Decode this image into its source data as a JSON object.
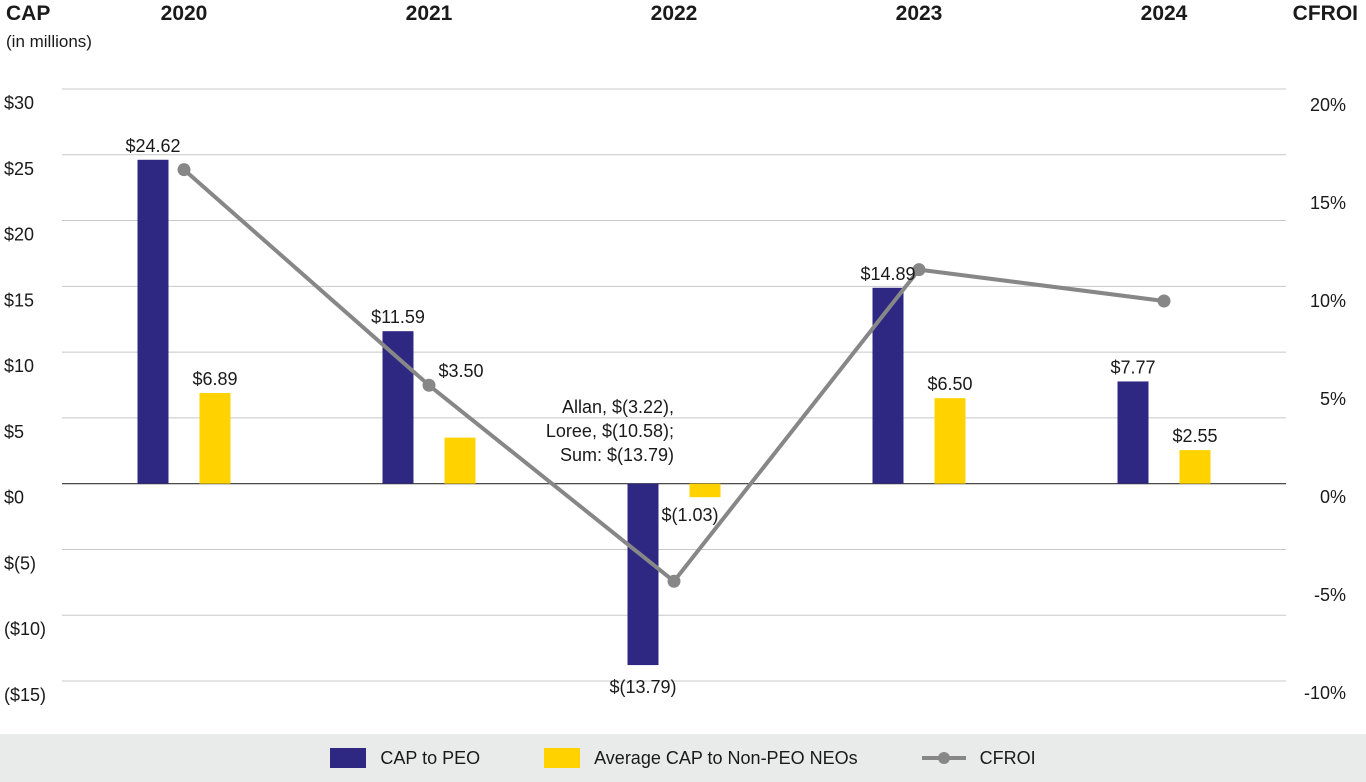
{
  "header": {
    "left_title": "CAP",
    "left_subtitle": "(in millions)",
    "right_title": "CFROI"
  },
  "colors": {
    "peo": "#2e2883",
    "non_peo": "#ffd200",
    "cfroi": "#878787"
  },
  "chart_data": {
    "type": "bar",
    "categories": [
      "2020",
      "2021",
      "2022",
      "2023",
      "2024"
    ],
    "series": [
      {
        "name": "CAP to PEO",
        "axis": "left",
        "values": [
          24.62,
          11.59,
          -13.79,
          14.89,
          7.77
        ],
        "labels": [
          "$24.62",
          "$11.59",
          "$(13.79)",
          "$14.89",
          "$7.77"
        ]
      },
      {
        "name": "Average CAP to Non-PEO NEOs",
        "axis": "left",
        "values": [
          6.89,
          3.5,
          -1.03,
          6.5,
          2.55
        ],
        "labels": [
          "$6.89",
          "$3.50",
          "$(1.03)",
          "$6.50",
          "$2.55"
        ]
      },
      {
        "name": "CFROI",
        "type": "line",
        "axis": "right",
        "values": [
          16.7,
          5.7,
          -4.3,
          11.6,
          10.0
        ]
      }
    ],
    "y_left": {
      "label": "CAP (in millions)",
      "range": [
        -15,
        30
      ],
      "ticks": [
        30,
        25,
        20,
        15,
        10,
        5,
        0,
        -5,
        -10,
        -15
      ],
      "tick_labels": [
        "$30",
        "$25",
        "$20",
        "$15",
        "$10",
        "$5",
        "$0",
        "$(5)",
        "($10)",
        "($15)"
      ]
    },
    "y_right": {
      "label": "CFROI",
      "range": [
        -10,
        20
      ],
      "ticks": [
        20,
        15,
        10,
        5,
        0,
        -5,
        -10
      ],
      "tick_labels": [
        "20%",
        "15%",
        "10%",
        "5%",
        "0%",
        "-5%",
        "-10%"
      ]
    },
    "annotations": [
      {
        "lines": [
          "Allan, $(3.22),",
          "Loree, $(10.58);",
          "Sum: $(13.79)"
        ],
        "category": "2022"
      }
    ],
    "legend": [
      "CAP to PEO",
      "Average CAP to Non-PEO NEOs",
      "CFROI"
    ],
    "grid": true,
    "legend_position": "bottom"
  }
}
